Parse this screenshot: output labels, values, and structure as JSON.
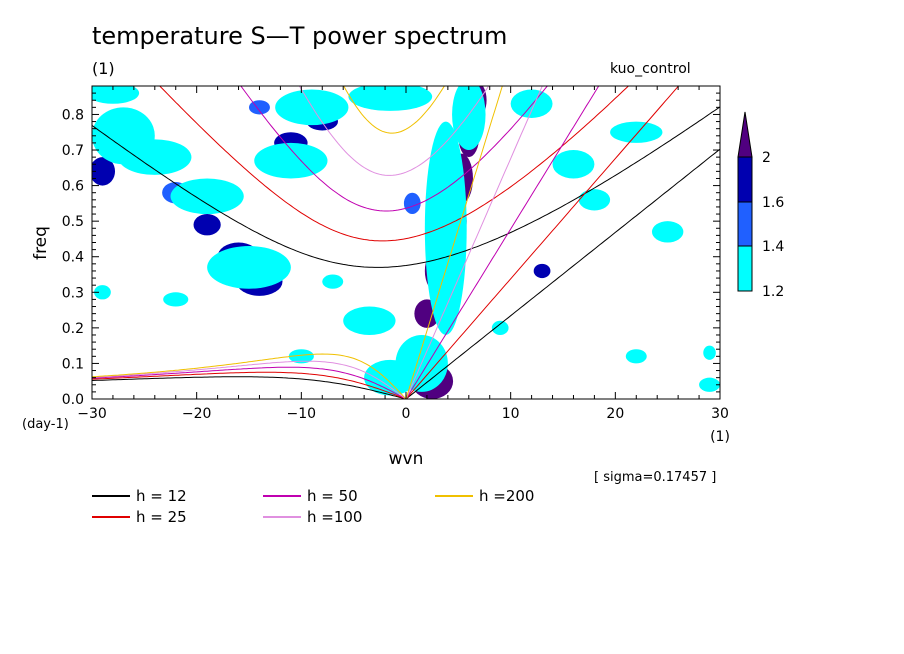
{
  "page": {
    "title": "temperature S—T power spectrum",
    "units_label": "(1)",
    "run_name": "kuo_control",
    "sigma_text": "[ sigma=0.17457 ]"
  },
  "chart_data": {
    "type": "heatmap",
    "title": "temperature S—T power spectrum",
    "xlabel": "wvn",
    "ylabel": "freq",
    "xunit": "(1)",
    "yunit": "(day-1)",
    "xlim": [
      -30,
      30
    ],
    "ylim": [
      0,
      0.88
    ],
    "xticks": [
      -30,
      -20,
      -10,
      0,
      10,
      20,
      30
    ],
    "xtick_labels": [
      "−30",
      "−20",
      "−10",
      "0",
      "10",
      "20",
      "30"
    ],
    "yticks": [
      0.0,
      0.1,
      0.2,
      0.3,
      0.4,
      0.5,
      0.6,
      0.7,
      0.8
    ],
    "ytick_labels": [
      "0.0",
      "0.1",
      "0.2",
      "0.3",
      "0.4",
      "0.5",
      "0.6",
      "0.7",
      "0.8"
    ],
    "colorbar": {
      "levels": [
        1.2,
        1.4,
        1.6,
        2
      ],
      "level_labels": [
        "1.2",
        "1.4",
        "1.6",
        "2"
      ],
      "colors": [
        "#00ffff",
        "#2060ff",
        "#0000b0",
        "#500080"
      ]
    },
    "blobs": [
      {
        "x": 2.5,
        "y": 0.05,
        "a": 2.0,
        "b": 0.05,
        "level": 3
      },
      {
        "x": 0.5,
        "y": 0.1,
        "a": 1.0,
        "b": 0.04,
        "level": 3
      },
      {
        "x": 2.0,
        "y": 0.24,
        "a": 1.2,
        "b": 0.04,
        "level": 3
      },
      {
        "x": 3.0,
        "y": 0.36,
        "a": 1.2,
        "b": 0.06,
        "level": 3
      },
      {
        "x": 4.6,
        "y": 0.5,
        "a": 1.2,
        "b": 0.07,
        "level": 3
      },
      {
        "x": 5.3,
        "y": 0.62,
        "a": 1.1,
        "b": 0.07,
        "level": 3
      },
      {
        "x": 6.0,
        "y": 0.74,
        "a": 1.0,
        "b": 0.06,
        "level": 3
      },
      {
        "x": 6.8,
        "y": 0.84,
        "a": 0.9,
        "b": 0.05,
        "level": 3
      },
      {
        "x": -2.0,
        "y": 0.86,
        "a": 2.8,
        "b": 0.03,
        "level": 3
      },
      {
        "x": -3.5,
        "y": 0.22,
        "a": 1.6,
        "b": 0.025,
        "level": 2
      },
      {
        "x": -16.0,
        "y": 0.4,
        "a": 2.0,
        "b": 0.04,
        "level": 2
      },
      {
        "x": -14.0,
        "y": 0.33,
        "a": 2.2,
        "b": 0.04,
        "level": 2
      },
      {
        "x": -27.0,
        "y": 0.79,
        "a": 1.5,
        "b": 0.02,
        "level": 2
      },
      {
        "x": -29.0,
        "y": 0.64,
        "a": 1.2,
        "b": 0.04,
        "level": 2
      },
      {
        "x": -11.0,
        "y": 0.72,
        "a": 1.6,
        "b": 0.03,
        "level": 2
      },
      {
        "x": -19.0,
        "y": 0.49,
        "a": 1.3,
        "b": 0.03,
        "level": 2
      },
      {
        "x": -8.0,
        "y": 0.78,
        "a": 1.5,
        "b": 0.025,
        "level": 2
      },
      {
        "x": 13.0,
        "y": 0.36,
        "a": 0.8,
        "b": 0.02,
        "level": 2
      },
      {
        "x": -14.0,
        "y": 0.82,
        "a": 1.0,
        "b": 0.02,
        "level": 1
      },
      {
        "x": -22.0,
        "y": 0.58,
        "a": 1.3,
        "b": 0.03,
        "level": 1
      },
      {
        "x": 0.6,
        "y": 0.55,
        "a": 0.8,
        "b": 0.03,
        "level": 1
      },
      {
        "x": -24.0,
        "y": 0.68,
        "a": 3.5,
        "b": 0.05,
        "level": 0
      },
      {
        "x": -19.0,
        "y": 0.57,
        "a": 3.5,
        "b": 0.05,
        "level": 0
      },
      {
        "x": -15.0,
        "y": 0.37,
        "a": 4.0,
        "b": 0.06,
        "level": 0
      },
      {
        "x": -11.0,
        "y": 0.67,
        "a": 3.5,
        "b": 0.05,
        "level": 0
      },
      {
        "x": -9.0,
        "y": 0.82,
        "a": 3.5,
        "b": 0.05,
        "level": 0
      },
      {
        "x": -27.0,
        "y": 0.74,
        "a": 3.0,
        "b": 0.08,
        "level": 0
      },
      {
        "x": -28.0,
        "y": 0.86,
        "a": 2.5,
        "b": 0.03,
        "level": 0
      },
      {
        "x": -3.5,
        "y": 0.22,
        "a": 2.5,
        "b": 0.04,
        "level": 0
      },
      {
        "x": -1.5,
        "y": 0.06,
        "a": 2.5,
        "b": 0.05,
        "level": 0
      },
      {
        "x": 1.5,
        "y": 0.1,
        "a": 2.5,
        "b": 0.08,
        "level": 0
      },
      {
        "x": 3.8,
        "y": 0.48,
        "a": 2.0,
        "b": 0.3,
        "level": 0
      },
      {
        "x": 6.0,
        "y": 0.8,
        "a": 1.6,
        "b": 0.1,
        "level": 0
      },
      {
        "x": -1.5,
        "y": 0.85,
        "a": 4.0,
        "b": 0.04,
        "level": 0
      },
      {
        "x": 12.0,
        "y": 0.83,
        "a": 2.0,
        "b": 0.04,
        "level": 0
      },
      {
        "x": 16.0,
        "y": 0.66,
        "a": 2.0,
        "b": 0.04,
        "level": 0
      },
      {
        "x": 22.0,
        "y": 0.75,
        "a": 2.5,
        "b": 0.03,
        "level": 0
      },
      {
        "x": 18.0,
        "y": 0.56,
        "a": 1.5,
        "b": 0.03,
        "level": 0
      },
      {
        "x": 25.0,
        "y": 0.47,
        "a": 1.5,
        "b": 0.03,
        "level": 0
      },
      {
        "x": 29.0,
        "y": 0.04,
        "a": 1.0,
        "b": 0.02,
        "level": 0
      },
      {
        "x": 29.0,
        "y": 0.13,
        "a": 0.6,
        "b": 0.02,
        "level": 0
      },
      {
        "x": -10.0,
        "y": 0.12,
        "a": 1.2,
        "b": 0.02,
        "level": 0
      },
      {
        "x": 9.0,
        "y": 0.2,
        "a": 0.8,
        "b": 0.02,
        "level": 0
      },
      {
        "x": -22.0,
        "y": 0.28,
        "a": 1.2,
        "b": 0.02,
        "level": 0
      },
      {
        "x": -7.0,
        "y": 0.33,
        "a": 1.0,
        "b": 0.02,
        "level": 0
      },
      {
        "x": -29.0,
        "y": 0.3,
        "a": 0.8,
        "b": 0.02,
        "level": 0
      },
      {
        "x": 22.0,
        "y": 0.12,
        "a": 1.0,
        "b": 0.02,
        "level": 0
      }
    ],
    "series": [
      {
        "name": "h = 12",
        "equivalent_depth_m": 12,
        "color": "#000000",
        "stroke_width": 1
      },
      {
        "name": "h = 25",
        "equivalent_depth_m": 25,
        "color": "#e00000",
        "stroke_width": 1
      },
      {
        "name": "h = 50",
        "equivalent_depth_m": 50,
        "color": "#c000b0",
        "stroke_width": 1
      },
      {
        "name": "h =100",
        "equivalent_depth_m": 100,
        "color": "#e090e0",
        "stroke_width": 1
      },
      {
        "name": "h =200",
        "equivalent_depth_m": 200,
        "color": "#f0c000",
        "stroke_width": 1
      }
    ],
    "legend": {
      "placement": "bottom",
      "items": [
        {
          "label": "h = 12",
          "color": "#000000"
        },
        {
          "label": "h = 25",
          "color": "#e00000"
        },
        {
          "label": "h = 50",
          "color": "#c000b0"
        },
        {
          "label": "h =100",
          "color": "#e090e0"
        },
        {
          "label": "h =200",
          "color": "#f0c000"
        }
      ]
    }
  }
}
